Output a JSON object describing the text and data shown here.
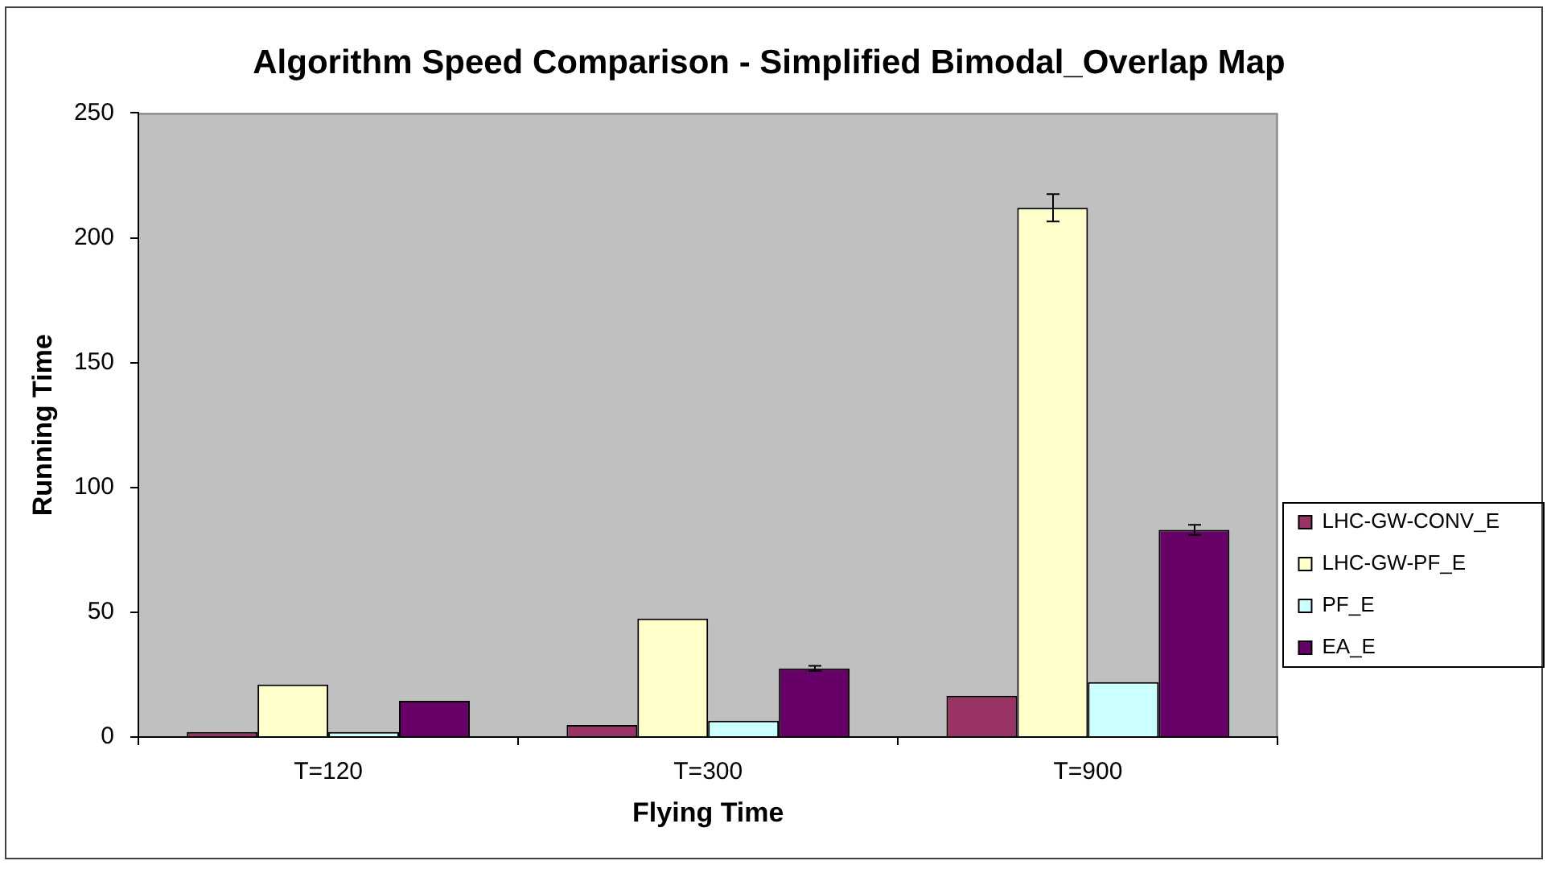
{
  "chart_data": {
    "type": "bar",
    "title": "Algorithm Speed Comparison - Simplified Bimodal_Overlap Map",
    "xlabel": "Flying Time",
    "ylabel": "Running Time",
    "categories": [
      "T=120",
      "T=300",
      "T=900"
    ],
    "series": [
      {
        "name": "LHC-GW-CONV_E",
        "color": "#993366",
        "values": [
          2,
          4.8,
          16.5
        ]
      },
      {
        "name": "LHC-GW-PF_E",
        "color": "#ffffcc",
        "values": [
          21,
          47.5,
          212
        ],
        "errors": [
          null,
          null,
          5.5
        ]
      },
      {
        "name": "PF_E",
        "color": "#ccffff",
        "values": [
          2,
          6.5,
          22
        ]
      },
      {
        "name": "EA_E",
        "color": "#660066",
        "values": [
          14.5,
          27.5,
          83
        ],
        "errors": [
          null,
          1,
          2
        ]
      }
    ],
    "ylim": [
      0,
      250
    ],
    "yticks": [
      0,
      50,
      100,
      150,
      200,
      250
    ],
    "grid": false,
    "legend": "right"
  }
}
